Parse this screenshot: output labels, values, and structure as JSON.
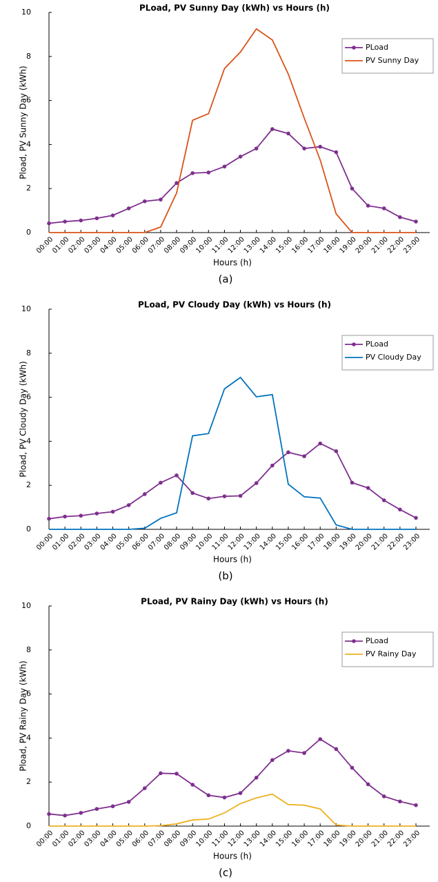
{
  "chart_data": [
    {
      "type": "line",
      "title": "PLoad, PV Sunny Day (kWh) vs Hours (h)",
      "xlabel": "Hours (h)",
      "ylabel": "Pload, PV Sunny Day (kWh)",
      "caption": "(a)",
      "categories": [
        "00:00",
        "01:00",
        "02:00",
        "03:00",
        "04:00",
        "05:00",
        "06:00",
        "07:00",
        "08:00",
        "09:00",
        "10:00",
        "11:00",
        "12:00",
        "13:00",
        "14:00",
        "15:00",
        "16:00",
        "17:00",
        "18:00",
        "19:00",
        "20:00",
        "21:00",
        "22:00",
        "23:00"
      ],
      "series": [
        {
          "name": "PLoad",
          "color": "#7e2f8e",
          "marker": true,
          "values": [
            0.42,
            0.5,
            0.55,
            0.65,
            0.78,
            1.1,
            1.42,
            1.5,
            2.25,
            2.7,
            2.73,
            3.0,
            3.45,
            3.82,
            4.7,
            4.5,
            3.82,
            3.9,
            3.65,
            2.0,
            1.22,
            1.1,
            0.7,
            0.5
          ]
        },
        {
          "name": "PV Sunny Day",
          "color": "#d95319",
          "marker": false,
          "values": [
            0,
            0,
            0,
            0,
            0,
            0,
            0,
            0.25,
            1.8,
            5.1,
            5.4,
            7.45,
            8.2,
            9.25,
            8.75,
            7.2,
            5.2,
            3.3,
            0.85,
            0,
            0,
            0,
            0,
            0
          ]
        }
      ],
      "ylim": [
        0,
        10
      ],
      "yticks": [
        0,
        2,
        4,
        6,
        8,
        10
      ],
      "legend": "upper right"
    },
    {
      "type": "line",
      "title": "PLoad, PV Cloudy Day (kWh) vs Hours (h)",
      "xlabel": "Hours (h)",
      "ylabel": "Pload, PV Cloudy Day (kWh)",
      "caption": "(b)",
      "categories": [
        "00:00",
        "01:00",
        "02:00",
        "03:00",
        "04:00",
        "05:00",
        "06:00",
        "07:00",
        "08:00",
        "09:00",
        "10:00",
        "11:00",
        "12:00",
        "13:00",
        "14:00",
        "15:00",
        "16:00",
        "17:00",
        "18:00",
        "19:00",
        "20:00",
        "21:00",
        "22:00",
        "23:00"
      ],
      "series": [
        {
          "name": "PLoad",
          "color": "#7e2f8e",
          "marker": true,
          "values": [
            0.48,
            0.58,
            0.62,
            0.72,
            0.8,
            1.1,
            1.6,
            2.12,
            2.45,
            1.65,
            1.4,
            1.5,
            1.52,
            2.1,
            2.9,
            3.5,
            3.32,
            3.9,
            3.55,
            2.12,
            1.88,
            1.32,
            0.9,
            0.52
          ]
        },
        {
          "name": "PV Cloudy Day",
          "color": "#0072bd",
          "marker": false,
          "values": [
            0,
            0,
            0,
            0,
            0,
            0,
            0.05,
            0.5,
            0.75,
            4.25,
            4.35,
            6.38,
            6.9,
            6.02,
            6.12,
            2.05,
            1.48,
            1.42,
            0.2,
            0,
            0,
            0,
            0,
            0
          ]
        }
      ],
      "ylim": [
        0,
        10
      ],
      "yticks": [
        0,
        2,
        4,
        6,
        8,
        10
      ],
      "legend": "upper right"
    },
    {
      "type": "line",
      "title": "PLoad, PV Rainy Day (kWh) vs Hours (h)",
      "xlabel": "Hours (h)",
      "ylabel": "Pload, PV Rainy Day (kWh)",
      "caption": "(c)",
      "categories": [
        "00:00",
        "01:00",
        "02:00",
        "03:00",
        "04:00",
        "05:00",
        "06:00",
        "07:00",
        "08:00",
        "09:00",
        "10:00",
        "11:00",
        "12:00",
        "13:00",
        "14:00",
        "15:00",
        "16:00",
        "17:00",
        "18:00",
        "19:00",
        "20:00",
        "21:00",
        "22:00",
        "23:00"
      ],
      "series": [
        {
          "name": "PLoad",
          "color": "#7e2f8e",
          "marker": true,
          "values": [
            0.55,
            0.48,
            0.6,
            0.78,
            0.9,
            1.1,
            1.72,
            2.4,
            2.38,
            1.88,
            1.4,
            1.3,
            1.5,
            2.2,
            3.0,
            3.42,
            3.32,
            3.95,
            3.5,
            2.65,
            1.9,
            1.35,
            1.12,
            0.95
          ]
        },
        {
          "name": "PV Rainy Day",
          "color": "#edb120",
          "marker": false,
          "values": [
            0,
            0,
            0,
            0,
            0,
            0,
            0,
            0.02,
            0.1,
            0.28,
            0.32,
            0.6,
            1.02,
            1.28,
            1.45,
            0.98,
            0.95,
            0.78,
            0.05,
            0,
            0,
            0,
            0,
            0
          ]
        }
      ],
      "ylim": [
        0,
        10
      ],
      "yticks": [
        0,
        2,
        4,
        6,
        8,
        10
      ],
      "legend": "upper right"
    }
  ]
}
